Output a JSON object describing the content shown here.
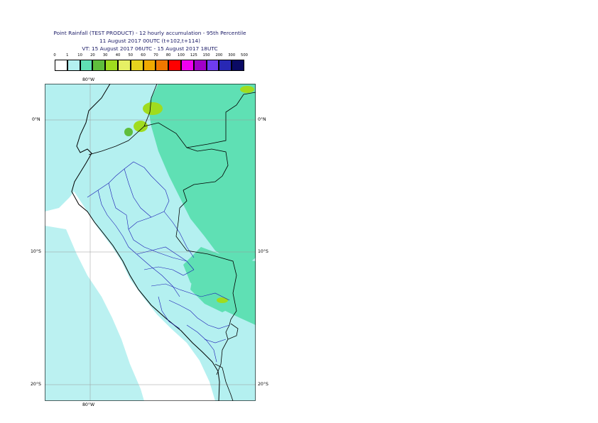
{
  "title": {
    "line1": "Point Rainfall (TEST PRODUCT) - 12 hourly accumulation - 95th Percentile",
    "line2": "11 August 2017 00UTC (t+102,t+114)",
    "line3": "VT: 15 August 2017 06UTC - 15 August 2017 18UTC"
  },
  "legend": {
    "ticks": [
      "0",
      "1",
      "10",
      "20",
      "30",
      "40",
      "50",
      "60",
      "70",
      "80",
      "100",
      "125",
      "150",
      "200",
      "300",
      "500"
    ],
    "colors": [
      "#ffffff",
      "#b4f0f0",
      "#5fe0b4",
      "#5fbe3c",
      "#a0dc1e",
      "#e6f064",
      "#e6d21e",
      "#f0aa00",
      "#f07800",
      "#ff0000",
      "#f000f0",
      "#a000c8",
      "#6e3cf0",
      "#2828b4",
      "#0a0a64"
    ]
  },
  "axes": {
    "top_lon": "80°W",
    "bottom_lon": "80°W",
    "lat_labels": [
      "0°N",
      "10°S",
      "20°S"
    ]
  }
}
